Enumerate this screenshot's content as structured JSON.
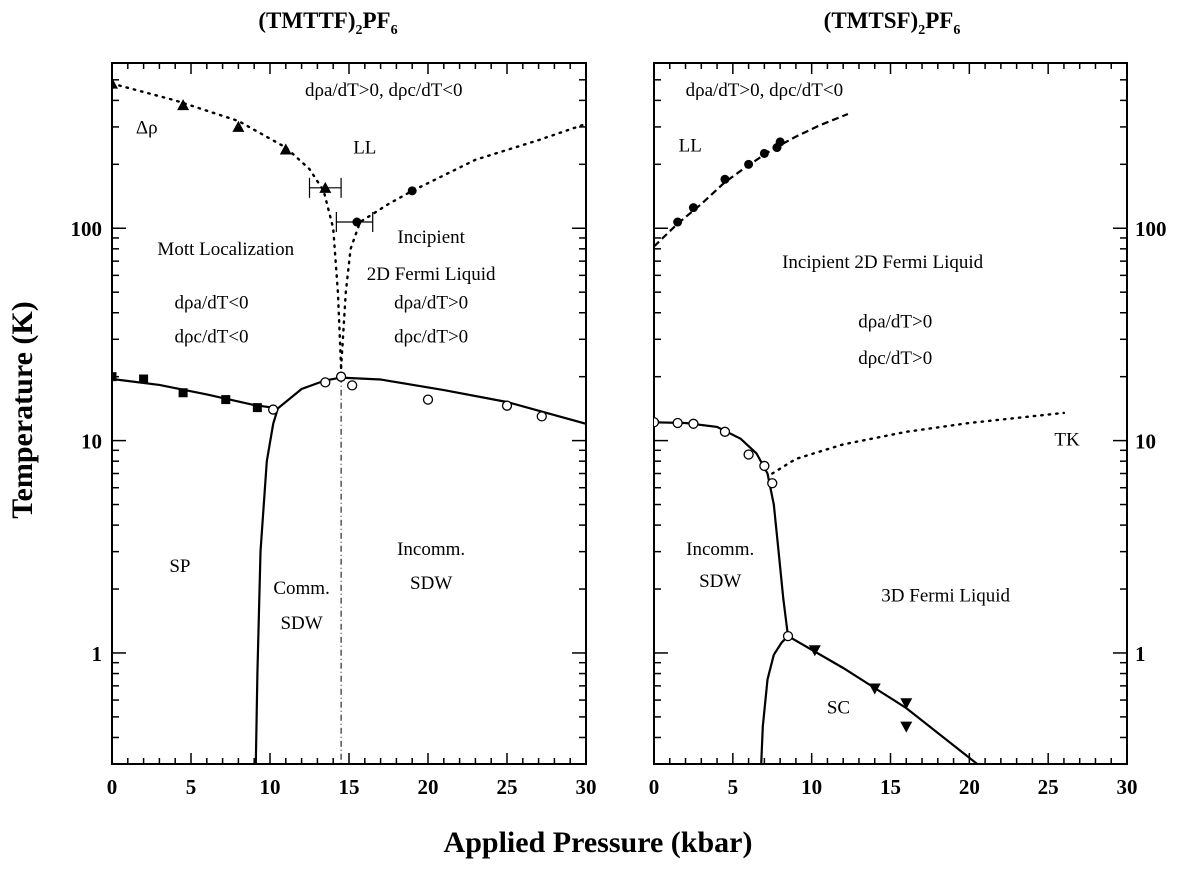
{
  "figure": {
    "xlabel": "Applied Pressure (kbar)",
    "ylabel": "Temperature (K)"
  },
  "chart_data": [
    {
      "type": "scatter",
      "title": "(TMTTF)",
      "title_sub": "2",
      "title_tail": "PF",
      "title_sub2": "6",
      "xlim": [
        0,
        30
      ],
      "ylim": [
        0.3,
        600
      ],
      "yscale": "log",
      "xticks": [
        "0",
        "5",
        "10",
        "15",
        "20",
        "25",
        "30"
      ],
      "yticks": [
        "1",
        "10",
        "100"
      ],
      "series": [
        {
          "marker": "triangle-filled",
          "points": [
            [
              0,
              480
            ],
            [
              4.5,
              380
            ],
            [
              8,
              300
            ],
            [
              11,
              235
            ],
            [
              13.5,
              155
            ]
          ]
        },
        {
          "marker": "circle-filled",
          "points": [
            [
              15.5,
              107
            ],
            [
              19,
              150
            ]
          ]
        },
        {
          "marker": "square-filled",
          "points": [
            [
              0,
              20
            ],
            [
              2,
              19.5
            ],
            [
              4.5,
              16.8
            ],
            [
              7.2,
              15.6
            ],
            [
              9.2,
              14.3
            ]
          ]
        },
        {
          "marker": "circle-open",
          "points": [
            [
              10.2,
              14
            ],
            [
              13.5,
              18.8
            ],
            [
              14.5,
              20
            ],
            [
              15.2,
              18.2
            ],
            [
              20,
              15.6
            ],
            [
              25,
              14.6
            ],
            [
              27.2,
              13
            ]
          ]
        }
      ],
      "curves": [
        {
          "style": "solid",
          "points": [
            [
              0,
              19.5
            ],
            [
              3,
              18.3
            ],
            [
              6,
              16.5
            ],
            [
              9,
              14.7
            ],
            [
              10.5,
              14.2
            ],
            [
              12,
              17.5
            ],
            [
              13.5,
              19.2
            ],
            [
              14.5,
              19.8
            ],
            [
              17,
              19.4
            ],
            [
              21,
              17.3
            ],
            [
              25,
              15.2
            ],
            [
              30,
              12
            ]
          ]
        },
        {
          "style": "solid",
          "points": [
            [
              9.1,
              0.3
            ],
            [
              9.2,
              0.8
            ],
            [
              9.4,
              3
            ],
            [
              9.8,
              8
            ],
            [
              10.2,
              12
            ],
            [
              10.5,
              14.2
            ]
          ]
        },
        {
          "style": "dotted",
          "points": [
            [
              0,
              480
            ],
            [
              4,
              400
            ],
            [
              8,
              320
            ],
            [
              11,
              240
            ],
            [
              12.5,
              190
            ],
            [
              13.4,
              150
            ],
            [
              14,
              100
            ],
            [
              14.3,
              50
            ],
            [
              14.5,
              22
            ]
          ]
        },
        {
          "style": "dotted",
          "points": [
            [
              14.5,
              22
            ],
            [
              14.8,
              50
            ],
            [
              15.1,
              80
            ],
            [
              15.7,
              107
            ],
            [
              17.5,
              130
            ],
            [
              19,
              150
            ],
            [
              23,
              210
            ],
            [
              27,
              260
            ],
            [
              30,
              310
            ]
          ]
        },
        {
          "style": "dashdot",
          "points": [
            [
              14.5,
              20
            ],
            [
              14.5,
              0.3
            ]
          ]
        }
      ],
      "error_bars": [
        {
          "x": 13.5,
          "y": 155,
          "xlo": 12.5,
          "xhi": 14.5
        },
        {
          "x": 15.5,
          "y": 107,
          "xlo": 14.2,
          "xhi": 16.5
        }
      ],
      "annotations": [
        {
          "text": "dρa/dT>0, dρc/dT<0",
          "x": 17.2,
          "y": 420
        },
        {
          "text": "LL",
          "x": 16,
          "y": 225
        },
        {
          "text": "Δρ",
          "x": 2.2,
          "y": 280
        },
        {
          "text": "Mott Localization",
          "x": 7.2,
          "y": 75
        },
        {
          "text": "dρa/dT<0",
          "x": 6.3,
          "y": 42
        },
        {
          "text": "dρc/dT<0",
          "x": 6.3,
          "y": 29
        },
        {
          "text": "Incipient",
          "x": 20.2,
          "y": 85
        },
        {
          "text": "2D Fermi Liquid",
          "x": 20.2,
          "y": 57
        },
        {
          "text": "dρa/dT>0",
          "x": 20.2,
          "y": 42
        },
        {
          "text": "dρc/dT>0",
          "x": 20.2,
          "y": 29
        },
        {
          "text": "SP",
          "x": 4.3,
          "y": 2.4
        },
        {
          "text": "Comm.",
          "x": 12,
          "y": 1.9
        },
        {
          "text": "SDW",
          "x": 12,
          "y": 1.3
        },
        {
          "text": "Incomm.",
          "x": 20.2,
          "y": 2.9
        },
        {
          "text": "SDW",
          "x": 20.2,
          "y": 2
        }
      ]
    },
    {
      "type": "scatter",
      "title": "(TMTSF)",
      "title_sub": "2",
      "title_tail": "PF",
      "title_sub2": "6",
      "xlim": [
        0,
        30
      ],
      "ylim": [
        0.3,
        600
      ],
      "yscale": "log",
      "xticks": [
        "0",
        "5",
        "10",
        "15",
        "20",
        "25",
        "30"
      ],
      "yticks": [
        "1",
        "10",
        "100"
      ],
      "series": [
        {
          "marker": "circle-filled",
          "points": [
            [
              1.5,
              107
            ],
            [
              2.5,
              125
            ],
            [
              4.5,
              170
            ],
            [
              6,
              200
            ],
            [
              7,
              225
            ],
            [
              7.8,
              240
            ],
            [
              8,
              255
            ]
          ]
        },
        {
          "marker": "circle-open",
          "points": [
            [
              0,
              12.2
            ],
            [
              1.5,
              12.1
            ],
            [
              2.5,
              12
            ],
            [
              4.5,
              11
            ],
            [
              6,
              8.6
            ],
            [
              7,
              7.6
            ],
            [
              7.5,
              6.3
            ],
            [
              8.5,
              1.2
            ]
          ]
        },
        {
          "marker": "triangle-down-filled",
          "points": [
            [
              10.2,
              1.03
            ],
            [
              14,
              0.68
            ],
            [
              16,
              0.58
            ],
            [
              16,
              0.45
            ]
          ]
        }
      ],
      "curves": [
        {
          "style": "solid",
          "points": [
            [
              0,
              12.2
            ],
            [
              2,
              12.1
            ],
            [
              4,
              11.6
            ],
            [
              5.5,
              10.2
            ],
            [
              6.5,
              8.7
            ],
            [
              7.2,
              7
            ],
            [
              7.6,
              5
            ],
            [
              7.9,
              3
            ],
            [
              8.2,
              1.8
            ],
            [
              8.5,
              1.2
            ]
          ]
        },
        {
          "style": "solid",
          "points": [
            [
              8.5,
              1.2
            ],
            [
              12,
              0.85
            ],
            [
              16,
              0.55
            ],
            [
              20.5,
              0.3
            ]
          ]
        },
        {
          "style": "solid",
          "points": [
            [
              6.8,
              0.3
            ],
            [
              6.9,
              0.45
            ],
            [
              7.2,
              0.75
            ],
            [
              7.6,
              0.98
            ],
            [
              8.1,
              1.12
            ],
            [
              8.5,
              1.2
            ]
          ]
        },
        {
          "style": "dashed",
          "points": [
            [
              0,
              82
            ],
            [
              1.5,
              105
            ],
            [
              3,
              130
            ],
            [
              4.5,
              165
            ],
            [
              6,
              198
            ],
            [
              7.5,
              235
            ],
            [
              9,
              270
            ],
            [
              10.5,
              305
            ],
            [
              12.3,
              345
            ]
          ]
        },
        {
          "style": "dotted",
          "points": [
            [
              7.5,
              7
            ],
            [
              9,
              8.2
            ],
            [
              12,
              9.6
            ],
            [
              16,
              11
            ],
            [
              20,
              12.1
            ],
            [
              26,
              13.5
            ]
          ]
        }
      ],
      "annotations": [
        {
          "text": "dρa/dT>0, dρc/dT<0",
          "x": 7,
          "y": 420
        },
        {
          "text": "LL",
          "x": 2.3,
          "y": 230
        },
        {
          "text": "Incipient 2D Fermi Liquid",
          "x": 14.5,
          "y": 65
        },
        {
          "text": "dρa/dT>0",
          "x": 15.3,
          "y": 34
        },
        {
          "text": "dρc/dT>0",
          "x": 15.3,
          "y": 23
        },
        {
          "text": "TK",
          "x": 26.2,
          "y": 9.5
        },
        {
          "text": "Incomm.",
          "x": 4.2,
          "y": 2.9
        },
        {
          "text": "SDW",
          "x": 4.2,
          "y": 2.05
        },
        {
          "text": "3D Fermi Liquid",
          "x": 18.5,
          "y": 1.75
        },
        {
          "text": "SC",
          "x": 11.7,
          "y": 0.52
        }
      ]
    }
  ]
}
